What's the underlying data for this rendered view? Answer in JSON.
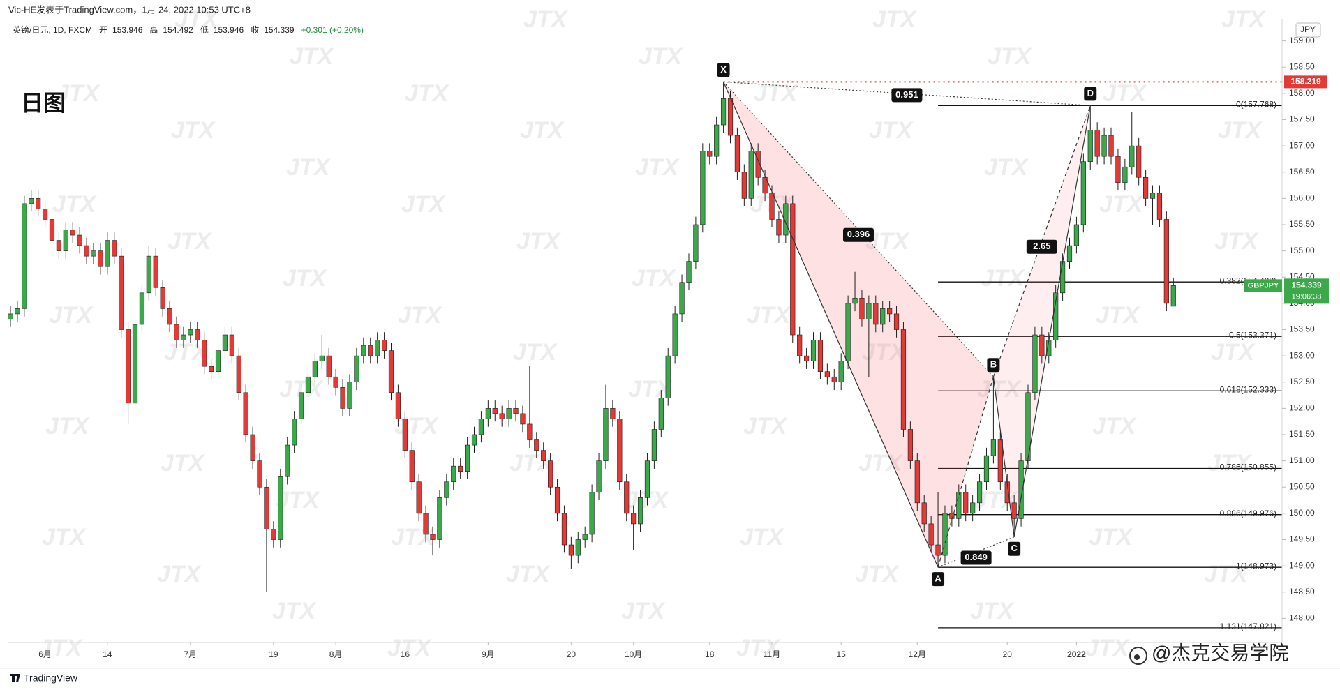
{
  "header": {
    "publisher": "Vic-HE发表于TradingView.com，1月 24, 2022 10:53 UTC+8",
    "footer": "TradingView",
    "watermark": "JTX",
    "brand": "@杰克交易学院"
  },
  "chart_data": {
    "type": "candlestick",
    "title": "日图",
    "legend_line": [
      "英镑/日元, 1D, FXCM",
      "开=153.946",
      "高=154.492",
      "低=153.946",
      "收=154.339",
      "+0.301 (+0.20%)"
    ],
    "currency": "JPY",
    "symbol_tag": "GBPJPY",
    "countdown": "19:06:38",
    "up_color": "#3ba84a",
    "down_color": "#e53935",
    "wick_color": "#1e1e1e",
    "grid": false,
    "xlim": [
      -0.3,
      183.7
    ],
    "ylim": [
      147.54,
      159.42
    ],
    "xticks": [
      {
        "value": 5,
        "label": "6月"
      },
      {
        "value": 14,
        "label": "14"
      },
      {
        "value": 26,
        "label": "7月"
      },
      {
        "value": 38,
        "label": "19"
      },
      {
        "value": 47,
        "label": "8月"
      },
      {
        "value": 57,
        "label": "16"
      },
      {
        "value": 69,
        "label": "9月"
      },
      {
        "value": 81,
        "label": "20"
      },
      {
        "value": 90,
        "label": "10月"
      },
      {
        "value": 101,
        "label": "18"
      },
      {
        "value": 110,
        "label": "11月"
      },
      {
        "value": 120,
        "label": "15"
      },
      {
        "value": 131,
        "label": "12月"
      },
      {
        "value": 144,
        "label": "20"
      },
      {
        "value": 154,
        "label": "2022"
      }
    ],
    "yticks": [
      {
        "value": 148,
        "label": "148.00"
      },
      {
        "value": 148.5,
        "label": "148.50"
      },
      {
        "value": 149,
        "label": "149.00"
      },
      {
        "value": 149.5,
        "label": "149.50"
      },
      {
        "value": 150,
        "label": "150.00"
      },
      {
        "value": 150.5,
        "label": "150.50"
      },
      {
        "value": 151,
        "label": "151.00"
      },
      {
        "value": 151.5,
        "label": "151.50"
      },
      {
        "value": 152,
        "label": "152.00"
      },
      {
        "value": 152.5,
        "label": "152.50"
      },
      {
        "value": 153,
        "label": "153.00"
      },
      {
        "value": 153.5,
        "label": "153.50"
      },
      {
        "value": 154,
        "label": "154.00"
      },
      {
        "value": 154.5,
        "label": "154.50"
      },
      {
        "value": 155,
        "label": "155.00"
      },
      {
        "value": 155.5,
        "label": "155.50"
      },
      {
        "value": 156,
        "label": "156.00"
      },
      {
        "value": 156.5,
        "label": "156.50"
      },
      {
        "value": 157,
        "label": "157.00"
      },
      {
        "value": 157.5,
        "label": "157.50"
      },
      {
        "value": 158,
        "label": "158.00"
      },
      {
        "value": 158.5,
        "label": "158.50"
      },
      {
        "value": 159,
        "label": "159.00"
      }
    ],
    "open": [
      153.7,
      153.8,
      153.9,
      155.9,
      156.0,
      155.8,
      155.6,
      155.2,
      155.0,
      155.4,
      155.3,
      155.1,
      154.9,
      155.0,
      154.7,
      155.2,
      154.9,
      153.5,
      152.1,
      153.6,
      154.2,
      154.9,
      154.3,
      153.9,
      153.6,
      153.3,
      153.4,
      153.5,
      153.3,
      152.8,
      152.7,
      153.1,
      153.4,
      153.0,
      152.3,
      151.5,
      151.0,
      150.5,
      149.7,
      149.5,
      150.7,
      151.3,
      151.8,
      152.3,
      152.6,
      152.9,
      153.0,
      152.6,
      152.4,
      152.0,
      152.5,
      153.0,
      153.2,
      153.0,
      153.3,
      153.1,
      152.3,
      151.8,
      151.2,
      150.6,
      150.0,
      149.6,
      149.5,
      150.3,
      150.6,
      150.9,
      150.8,
      151.3,
      151.5,
      151.8,
      152.0,
      151.9,
      151.8,
      152.0,
      151.9,
      151.7,
      151.4,
      151.2,
      151.0,
      150.5,
      150.0,
      149.4,
      149.2,
      149.5,
      149.6,
      150.4,
      151.0,
      152.0,
      151.8,
      150.6,
      150.0,
      149.8,
      150.3,
      151.0,
      151.6,
      152.2,
      153.0,
      153.8,
      154.4,
      154.8,
      155.5,
      156.9,
      156.8,
      157.4,
      157.9,
      157.2,
      156.5,
      156.0,
      156.9,
      156.4,
      156.1,
      155.6,
      155.3,
      155.9,
      153.4,
      153.0,
      152.9,
      153.3,
      152.7,
      152.6,
      152.5,
      152.9,
      154.0,
      154.1,
      153.7,
      154.0,
      153.6,
      153.9,
      153.8,
      153.5,
      151.6,
      151.0,
      150.2,
      149.8,
      149.4,
      149.2,
      150.0,
      149.9,
      150.4,
      150.0,
      150.2,
      150.6,
      151.1,
      151.4,
      150.6,
      150.2,
      149.9,
      151.0,
      152.3,
      153.4,
      153.0,
      153.3,
      154.2,
      154.8,
      155.1,
      155.5,
      156.7,
      157.3,
      156.8,
      157.2,
      156.8,
      156.3,
      156.6,
      157.0,
      156.4,
      156.0,
      156.1,
      155.6,
      153.946
    ],
    "high": [
      153.95,
      154.05,
      156.05,
      156.15,
      156.15,
      155.95,
      155.75,
      155.35,
      155.55,
      155.55,
      155.45,
      155.25,
      155.15,
      155.15,
      155.35,
      155.35,
      155.05,
      153.65,
      153.75,
      154.35,
      155.1,
      155.05,
      154.45,
      154.05,
      153.75,
      153.55,
      153.65,
      153.65,
      153.45,
      152.95,
      153.25,
      153.55,
      153.55,
      153.15,
      152.45,
      151.65,
      151.15,
      150.65,
      149.85,
      150.85,
      151.45,
      151.95,
      152.45,
      152.75,
      153.05,
      153.4,
      153.15,
      152.75,
      152.55,
      152.65,
      153.15,
      153.35,
      153.35,
      153.45,
      153.45,
      153.25,
      152.45,
      151.95,
      151.35,
      150.75,
      150.15,
      149.75,
      150.45,
      150.75,
      151.05,
      151.05,
      151.45,
      151.65,
      151.95,
      152.15,
      152.15,
      152.05,
      152.15,
      152.15,
      152.05,
      152.8,
      151.55,
      151.35,
      151.15,
      150.65,
      150.15,
      149.55,
      149.65,
      149.75,
      150.55,
      151.15,
      152.45,
      152.15,
      151.95,
      150.75,
      150.15,
      150.45,
      151.15,
      151.75,
      152.35,
      153.15,
      153.95,
      154.55,
      154.95,
      155.65,
      157.05,
      157.05,
      157.55,
      158.219,
      158.05,
      157.35,
      156.65,
      157.05,
      157.05,
      156.55,
      156.25,
      155.75,
      156.05,
      156.05,
      153.55,
      153.15,
      153.45,
      153.45,
      152.85,
      152.75,
      153.05,
      154.15,
      154.6,
      154.25,
      154.15,
      154.15,
      154.05,
      154.05,
      153.95,
      153.65,
      151.75,
      151.15,
      150.35,
      149.95,
      150.4,
      150.15,
      150.15,
      150.55,
      150.55,
      150.35,
      150.75,
      151.25,
      152.6,
      151.55,
      150.75,
      150.35,
      151.15,
      152.45,
      153.55,
      153.55,
      153.45,
      154.35,
      154.95,
      155.25,
      155.65,
      156.85,
      157.768,
      157.45,
      157.35,
      157.35,
      156.95,
      156.75,
      157.65,
      157.15,
      156.55,
      156.25,
      156.25,
      155.75,
      154.492
    ],
    "low": [
      153.55,
      153.65,
      153.75,
      155.75,
      155.65,
      155.45,
      155.05,
      154.85,
      154.85,
      155.15,
      154.95,
      154.75,
      154.75,
      154.55,
      154.55,
      154.75,
      153.35,
      151.7,
      151.95,
      153.45,
      154.05,
      154.15,
      153.75,
      153.45,
      153.15,
      153.15,
      153.25,
      153.15,
      152.65,
      152.55,
      152.55,
      152.95,
      152.85,
      152.15,
      151.35,
      150.85,
      150.35,
      148.5,
      149.35,
      149.35,
      150.55,
      151.15,
      151.65,
      152.15,
      152.45,
      152.75,
      152.45,
      152.25,
      151.85,
      151.85,
      152.35,
      152.85,
      152.85,
      152.85,
      152.95,
      152.15,
      151.65,
      151.05,
      150.45,
      149.85,
      149.45,
      149.2,
      149.35,
      150.15,
      150.45,
      150.65,
      150.65,
      151.15,
      151.35,
      151.65,
      151.75,
      151.65,
      151.65,
      151.75,
      151.55,
      151.25,
      151.05,
      150.85,
      150.35,
      149.85,
      149.25,
      148.95,
      149.05,
      149.35,
      149.45,
      150.25,
      150.85,
      151.65,
      150.45,
      149.85,
      149.3,
      149.65,
      150.15,
      150.85,
      151.45,
      152.05,
      152.85,
      153.65,
      154.25,
      154.65,
      155.35,
      156.65,
      156.65,
      157.25,
      157.05,
      156.35,
      155.85,
      155.85,
      156.25,
      155.95,
      155.45,
      155.15,
      155.15,
      153.25,
      152.85,
      152.75,
      152.75,
      152.55,
      152.45,
      152.35,
      152.35,
      152.75,
      153.85,
      153.55,
      152.6,
      153.45,
      153.45,
      153.65,
      153.35,
      151.45,
      150.85,
      150.05,
      149.65,
      149.25,
      148.973,
      149.05,
      149.75,
      149.75,
      149.85,
      149.85,
      150.05,
      150.45,
      150.95,
      150.45,
      150.05,
      149.55,
      149.75,
      150.85,
      152.15,
      152.85,
      152.85,
      153.15,
      154.05,
      154.65,
      154.95,
      155.35,
      156.55,
      156.65,
      156.65,
      156.65,
      156.15,
      156.15,
      156.45,
      156.25,
      155.85,
      155.5,
      155.45,
      153.85,
      153.946
    ],
    "close": [
      153.8,
      153.9,
      155.9,
      156.0,
      155.8,
      155.6,
      155.2,
      155.0,
      155.4,
      155.3,
      155.1,
      154.9,
      155.0,
      154.7,
      155.2,
      154.9,
      153.5,
      152.1,
      153.6,
      154.2,
      154.9,
      154.3,
      153.9,
      153.6,
      153.3,
      153.4,
      153.5,
      153.3,
      152.8,
      152.7,
      153.1,
      153.4,
      153.0,
      152.3,
      151.5,
      151.0,
      150.5,
      149.7,
      149.5,
      150.7,
      151.3,
      151.8,
      152.3,
      152.6,
      152.9,
      153.0,
      152.6,
      152.4,
      152.0,
      152.5,
      153.0,
      153.2,
      153.0,
      153.3,
      153.1,
      152.3,
      151.8,
      151.2,
      150.6,
      150.0,
      149.6,
      149.5,
      150.3,
      150.6,
      150.9,
      150.8,
      151.3,
      151.5,
      151.8,
      152.0,
      151.9,
      151.8,
      152.0,
      151.9,
      151.7,
      151.4,
      151.2,
      151.0,
      150.5,
      150.0,
      149.4,
      149.2,
      149.5,
      149.6,
      150.4,
      151.0,
      152.0,
      151.8,
      150.6,
      150.0,
      149.8,
      150.3,
      151.0,
      151.6,
      152.2,
      153.0,
      153.8,
      154.4,
      154.8,
      155.5,
      156.9,
      156.8,
      157.4,
      157.9,
      157.2,
      156.5,
      156.0,
      156.9,
      156.4,
      156.1,
      155.6,
      155.3,
      155.9,
      153.4,
      153.0,
      152.9,
      153.3,
      152.7,
      152.6,
      152.5,
      152.9,
      154.0,
      154.1,
      153.7,
      154.0,
      153.6,
      153.9,
      153.8,
      153.5,
      151.6,
      151.0,
      150.2,
      149.8,
      149.4,
      149.2,
      150.0,
      149.9,
      150.4,
      150.0,
      150.2,
      150.6,
      151.1,
      151.4,
      150.6,
      150.2,
      149.9,
      151.0,
      152.3,
      153.4,
      153.0,
      153.3,
      154.2,
      154.8,
      155.1,
      155.5,
      156.7,
      157.3,
      156.8,
      157.2,
      156.8,
      156.3,
      156.6,
      157.0,
      156.4,
      156.0,
      156.1,
      155.6,
      154.0,
      154.339
    ],
    "pattern": {
      "points": [
        {
          "name": "X",
          "x": 103,
          "y": 158.219
        },
        {
          "name": "A",
          "x": 134,
          "y": 148.973
        },
        {
          "name": "B",
          "x": 142,
          "y": 152.6
        },
        {
          "name": "C",
          "x": 145,
          "y": 149.55
        },
        {
          "name": "D",
          "x": 156,
          "y": 157.768
        }
      ],
      "ratios": [
        {
          "value": 0.951,
          "from": "X",
          "to": "D"
        },
        {
          "value": 0.396,
          "from": "X",
          "to": "B"
        },
        {
          "value": 0.849,
          "from": "A",
          "to": "C"
        },
        {
          "value": 2.65,
          "from": "B",
          "to": "D"
        }
      ]
    },
    "fib_levels": [
      {
        "value": 157.768,
        "label": "0(157.768)"
      },
      {
        "value": 154.408,
        "label": "0.382(154.408)"
      },
      {
        "value": 153.371,
        "label": "0.5(153.371)"
      },
      {
        "value": 152.333,
        "label": "0.618(152.333)"
      },
      {
        "value": 150.855,
        "label": "0.786(150.855)"
      },
      {
        "value": 149.976,
        "label": "0.886(149.976)"
      },
      {
        "value": 148.973,
        "label": "1(148.973)"
      },
      {
        "value": 147.821,
        "label": "1.131(147.821)"
      }
    ]
  }
}
